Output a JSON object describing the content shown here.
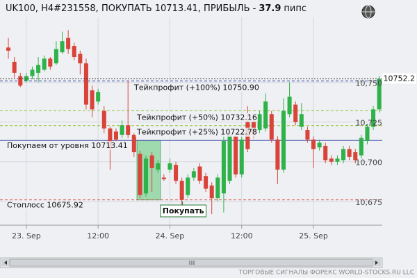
{
  "chart_data": {
    "type": "candlestick",
    "title": "UK100, H4#231558, ПОКУПАТЬ 10713.41, ПРИБЫЛЬ -",
    "profit": 37.9,
    "profit_unit": "пипс",
    "footer": "ТОРГОВЫЕ СИГНАЛЫ ФОРЕКС WORLD-STOCKS.RU LLC",
    "annotation": "Покупать",
    "last_price": 10752.2,
    "up_color": "#2fb24a",
    "down_color": "#d8443a",
    "xlim": [
      -4.4,
      59.5
    ],
    "ylim": [
      10660,
      10791
    ],
    "xticks": [
      {
        "value": 0,
        "label": "23. Sep"
      },
      {
        "value": 12,
        "label": "12:00"
      },
      {
        "value": 24,
        "label": "24. Sep"
      },
      {
        "value": 36,
        "label": "12:00"
      },
      {
        "value": 48,
        "label": "25. Sep"
      }
    ],
    "yticks": [
      {
        "value": 10675,
        "label": "10,675"
      },
      {
        "value": 10700,
        "label": "10,700"
      },
      {
        "value": 10725,
        "label": "10,725"
      },
      {
        "value": 10750,
        "label": "10,750"
      }
    ],
    "grid": true,
    "levels": [
      {
        "label": "Тейкпрофит (+100%) 10750.90",
        "value": 10750.9,
        "color": "#1f2f9e",
        "dash": true
      },
      {
        "label": "Тейкпрофит (+50%) 10732.16",
        "value": 10732.16,
        "color": "#8fbf2f",
        "dash": true
      },
      {
        "label": "Тейкпрофит (+25%) 10722.78",
        "value": 10722.78,
        "color": "#8fbf2f",
        "dash": true
      },
      {
        "label": "Покупаем от уровня 10713.41",
        "value": 10713.41,
        "color": "#1f2f9e",
        "dash": false
      },
      {
        "label": "Стоплосс 10675.92",
        "value": 10675.92,
        "color": "#d8443a",
        "dash": true
      }
    ],
    "x": [
      -3,
      -2,
      -1,
      0,
      1,
      2,
      3,
      4,
      5,
      6,
      7,
      8,
      9,
      10,
      11,
      12,
      13,
      14,
      15,
      16,
      17,
      18,
      19,
      20,
      21,
      22,
      23,
      24,
      25,
      26,
      27,
      28,
      29,
      30,
      31,
      32,
      33,
      34,
      35,
      36,
      37,
      38,
      39,
      40,
      41,
      42,
      43,
      44,
      45,
      46,
      47,
      48,
      49,
      50,
      51,
      52,
      53,
      54,
      55,
      56,
      57,
      58,
      59
    ],
    "open": [
      10772,
      10763,
      10754,
      10751,
      10754,
      10756,
      10758,
      10765,
      10762,
      10769,
      10778,
      10773,
      10768,
      10762,
      10745,
      10738,
      10732,
      10721,
      10719,
      10717,
      10723,
      10717,
      10705,
      10680,
      10704,
      10695,
      10690,
      10695,
      10698,
      10688,
      10679,
      10690,
      10697,
      10691,
      10685,
      10677,
      10680,
      10688,
      10716,
      10692,
      10725,
      10725,
      10720,
      10721,
      10730,
      10714,
      10695,
      10730,
      10736,
      10722,
      10720,
      10714,
      10709,
      10710,
      10702,
      10700,
      10701,
      10708,
      10706,
      10704,
      10713,
      10722,
      10733
    ],
    "high": [
      10778,
      10766,
      10756,
      10756,
      10760,
      10766,
      10767,
      10766,
      10776,
      10782,
      10783,
      10775,
      10770,
      10765,
      10748,
      10746,
      10735,
      10722,
      10721,
      10726,
      10751,
      10718,
      10707,
      10704,
      10706,
      10701,
      10692,
      10702,
      10700,
      10690,
      10692,
      10696,
      10699,
      10693,
      10687,
      10692,
      10717,
      10719,
      10718,
      10716,
      10735,
      10727,
      10732,
      10743,
      10732,
      10716,
      10740,
      10750,
      10738,
      10737,
      10722,
      10716,
      10714,
      10712,
      10704,
      10704,
      10710,
      10710,
      10708,
      10717,
      10724,
      10735,
      10754
    ],
    "low": [
      10765,
      10753,
      10747,
      10750,
      10752,
      10750,
      10757,
      10758,
      10761,
      10768,
      10768,
      10764,
      10755,
      10733,
      10728,
      10736,
      10718,
      10695,
      10712,
      10715,
      10715,
      10703,
      10677,
      10678,
      10681,
      10693,
      10688,
      10693,
      10686,
      10671,
      10677,
      10688,
      10686,
      10681,
      10667,
      10675,
      10668,
      10686,
      10690,
      10690,
      10706,
      10715,
      10718,
      10719,
      10712,
      10686,
      10693,
      10728,
      10723,
      10720,
      10712,
      10696,
      10707,
      10699,
      10698,
      10698,
      10699,
      10701,
      10699,
      10702,
      10711,
      10720,
      10731
    ],
    "close": [
      10770,
      10756,
      10748,
      10754,
      10758,
      10761,
      10765,
      10760,
      10771,
      10776,
      10771,
      10766,
      10762,
      10736,
      10733,
      10744,
      10721,
      10708,
      10714,
      10723,
      10717,
      10706,
      10679,
      10702,
      10696,
      10699,
      10689,
      10699,
      10688,
      10676,
      10690,
      10694,
      10688,
      10683,
      10677,
      10690,
      10713,
      10717,
      10692,
      10714,
      10708,
      10717,
      10730,
      10738,
      10714,
      10695,
      10732,
      10741,
      10725,
      10730,
      10714,
      10708,
      10712,
      10701,
      10700,
      10702,
      10708,
      10703,
      10701,
      10715,
      10722,
      10733,
      10752.2
    ]
  }
}
